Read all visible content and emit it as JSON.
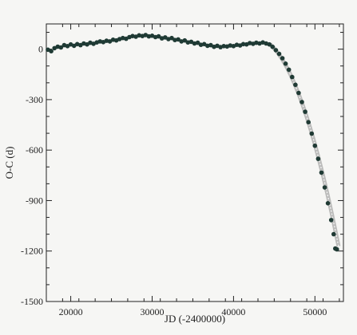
{
  "chart_data": {
    "type": "scatter",
    "xlabel": "JD (-2400000)",
    "ylabel": "O-C (d)",
    "xlim": [
      17000,
      53500
    ],
    "ylim": [
      -1500,
      150
    ],
    "xticks": [
      20000,
      30000,
      40000,
      50000
    ],
    "xtick_labels": [
      "20000",
      "30000",
      "40000",
      "50000"
    ],
    "yticks": [
      0,
      -300,
      -600,
      -900,
      -1200,
      -1500
    ],
    "ytick_labels": [
      "0",
      "-300",
      "-600",
      "-900",
      "-1200",
      "-1500"
    ],
    "grid": false,
    "series": [
      {
        "marker": "filled-circle",
        "color": "#1f3a34",
        "points": [
          [
            17200,
            -3
          ],
          [
            17600,
            -12
          ],
          [
            18000,
            6
          ],
          [
            18400,
            15
          ],
          [
            18800,
            10
          ],
          [
            19200,
            24
          ],
          [
            19600,
            18
          ],
          [
            20000,
            28
          ],
          [
            20400,
            20
          ],
          [
            20800,
            30
          ],
          [
            21200,
            24
          ],
          [
            21600,
            34
          ],
          [
            22000,
            28
          ],
          [
            22400,
            38
          ],
          [
            22800,
            32
          ],
          [
            23200,
            40
          ],
          [
            23600,
            46
          ],
          [
            24000,
            42
          ],
          [
            24400,
            50
          ],
          [
            24800,
            46
          ],
          [
            25200,
            56
          ],
          [
            25600,
            52
          ],
          [
            26000,
            60
          ],
          [
            26400,
            66
          ],
          [
            26800,
            62
          ],
          [
            27200,
            72
          ],
          [
            27600,
            78
          ],
          [
            28000,
            74
          ],
          [
            28400,
            82
          ],
          [
            28800,
            78
          ],
          [
            29200,
            84
          ],
          [
            29600,
            76
          ],
          [
            30000,
            80
          ],
          [
            30400,
            72
          ],
          [
            30800,
            76
          ],
          [
            31200,
            64
          ],
          [
            31600,
            70
          ],
          [
            32000,
            60
          ],
          [
            32400,
            66
          ],
          [
            32800,
            54
          ],
          [
            33200,
            58
          ],
          [
            33600,
            46
          ],
          [
            34000,
            52
          ],
          [
            34400,
            40
          ],
          [
            34800,
            44
          ],
          [
            35200,
            34
          ],
          [
            35600,
            38
          ],
          [
            36000,
            26
          ],
          [
            36400,
            30
          ],
          [
            36800,
            20
          ],
          [
            37200,
            24
          ],
          [
            37600,
            14
          ],
          [
            38000,
            20
          ],
          [
            38400,
            12
          ],
          [
            38800,
            18
          ],
          [
            39200,
            16
          ],
          [
            39600,
            22
          ],
          [
            40000,
            18
          ],
          [
            40400,
            26
          ],
          [
            40800,
            22
          ],
          [
            41200,
            30
          ],
          [
            41600,
            28
          ],
          [
            42000,
            36
          ],
          [
            42400,
            32
          ],
          [
            42800,
            38
          ],
          [
            43200,
            34
          ],
          [
            43600,
            40
          ],
          [
            44000,
            34
          ],
          [
            44400,
            28
          ],
          [
            44800,
            14
          ],
          [
            45200,
            -6
          ],
          [
            45600,
            -28
          ],
          [
            46000,
            -54
          ],
          [
            46400,
            -86
          ],
          [
            46800,
            -122
          ],
          [
            47200,
            -166
          ],
          [
            47600,
            -212
          ],
          [
            48000,
            -260
          ],
          [
            48400,
            -314
          ],
          [
            48800,
            -372
          ],
          [
            49200,
            -434
          ],
          [
            49600,
            -502
          ],
          [
            50000,
            -574
          ],
          [
            50400,
            -652
          ],
          [
            50800,
            -734
          ],
          [
            51200,
            -822
          ],
          [
            51600,
            -916
          ],
          [
            52000,
            -1016
          ],
          [
            52300,
            -1100
          ],
          [
            52500,
            -1185
          ],
          [
            52700,
            -1190
          ]
        ]
      },
      {
        "marker": "fit-curve",
        "color": "#8a8a8a",
        "points": [
          [
            44500,
            30
          ],
          [
            45000,
            4
          ],
          [
            45500,
            -26
          ],
          [
            46000,
            -62
          ],
          [
            46500,
            -104
          ],
          [
            47000,
            -152
          ],
          [
            47500,
            -206
          ],
          [
            48000,
            -266
          ],
          [
            48500,
            -332
          ],
          [
            49000,
            -404
          ],
          [
            49500,
            -482
          ],
          [
            50000,
            -566
          ],
          [
            50500,
            -656
          ],
          [
            51000,
            -752
          ],
          [
            51500,
            -854
          ],
          [
            52000,
            -962
          ],
          [
            52500,
            -1076
          ],
          [
            52900,
            -1172
          ]
        ]
      }
    ]
  }
}
